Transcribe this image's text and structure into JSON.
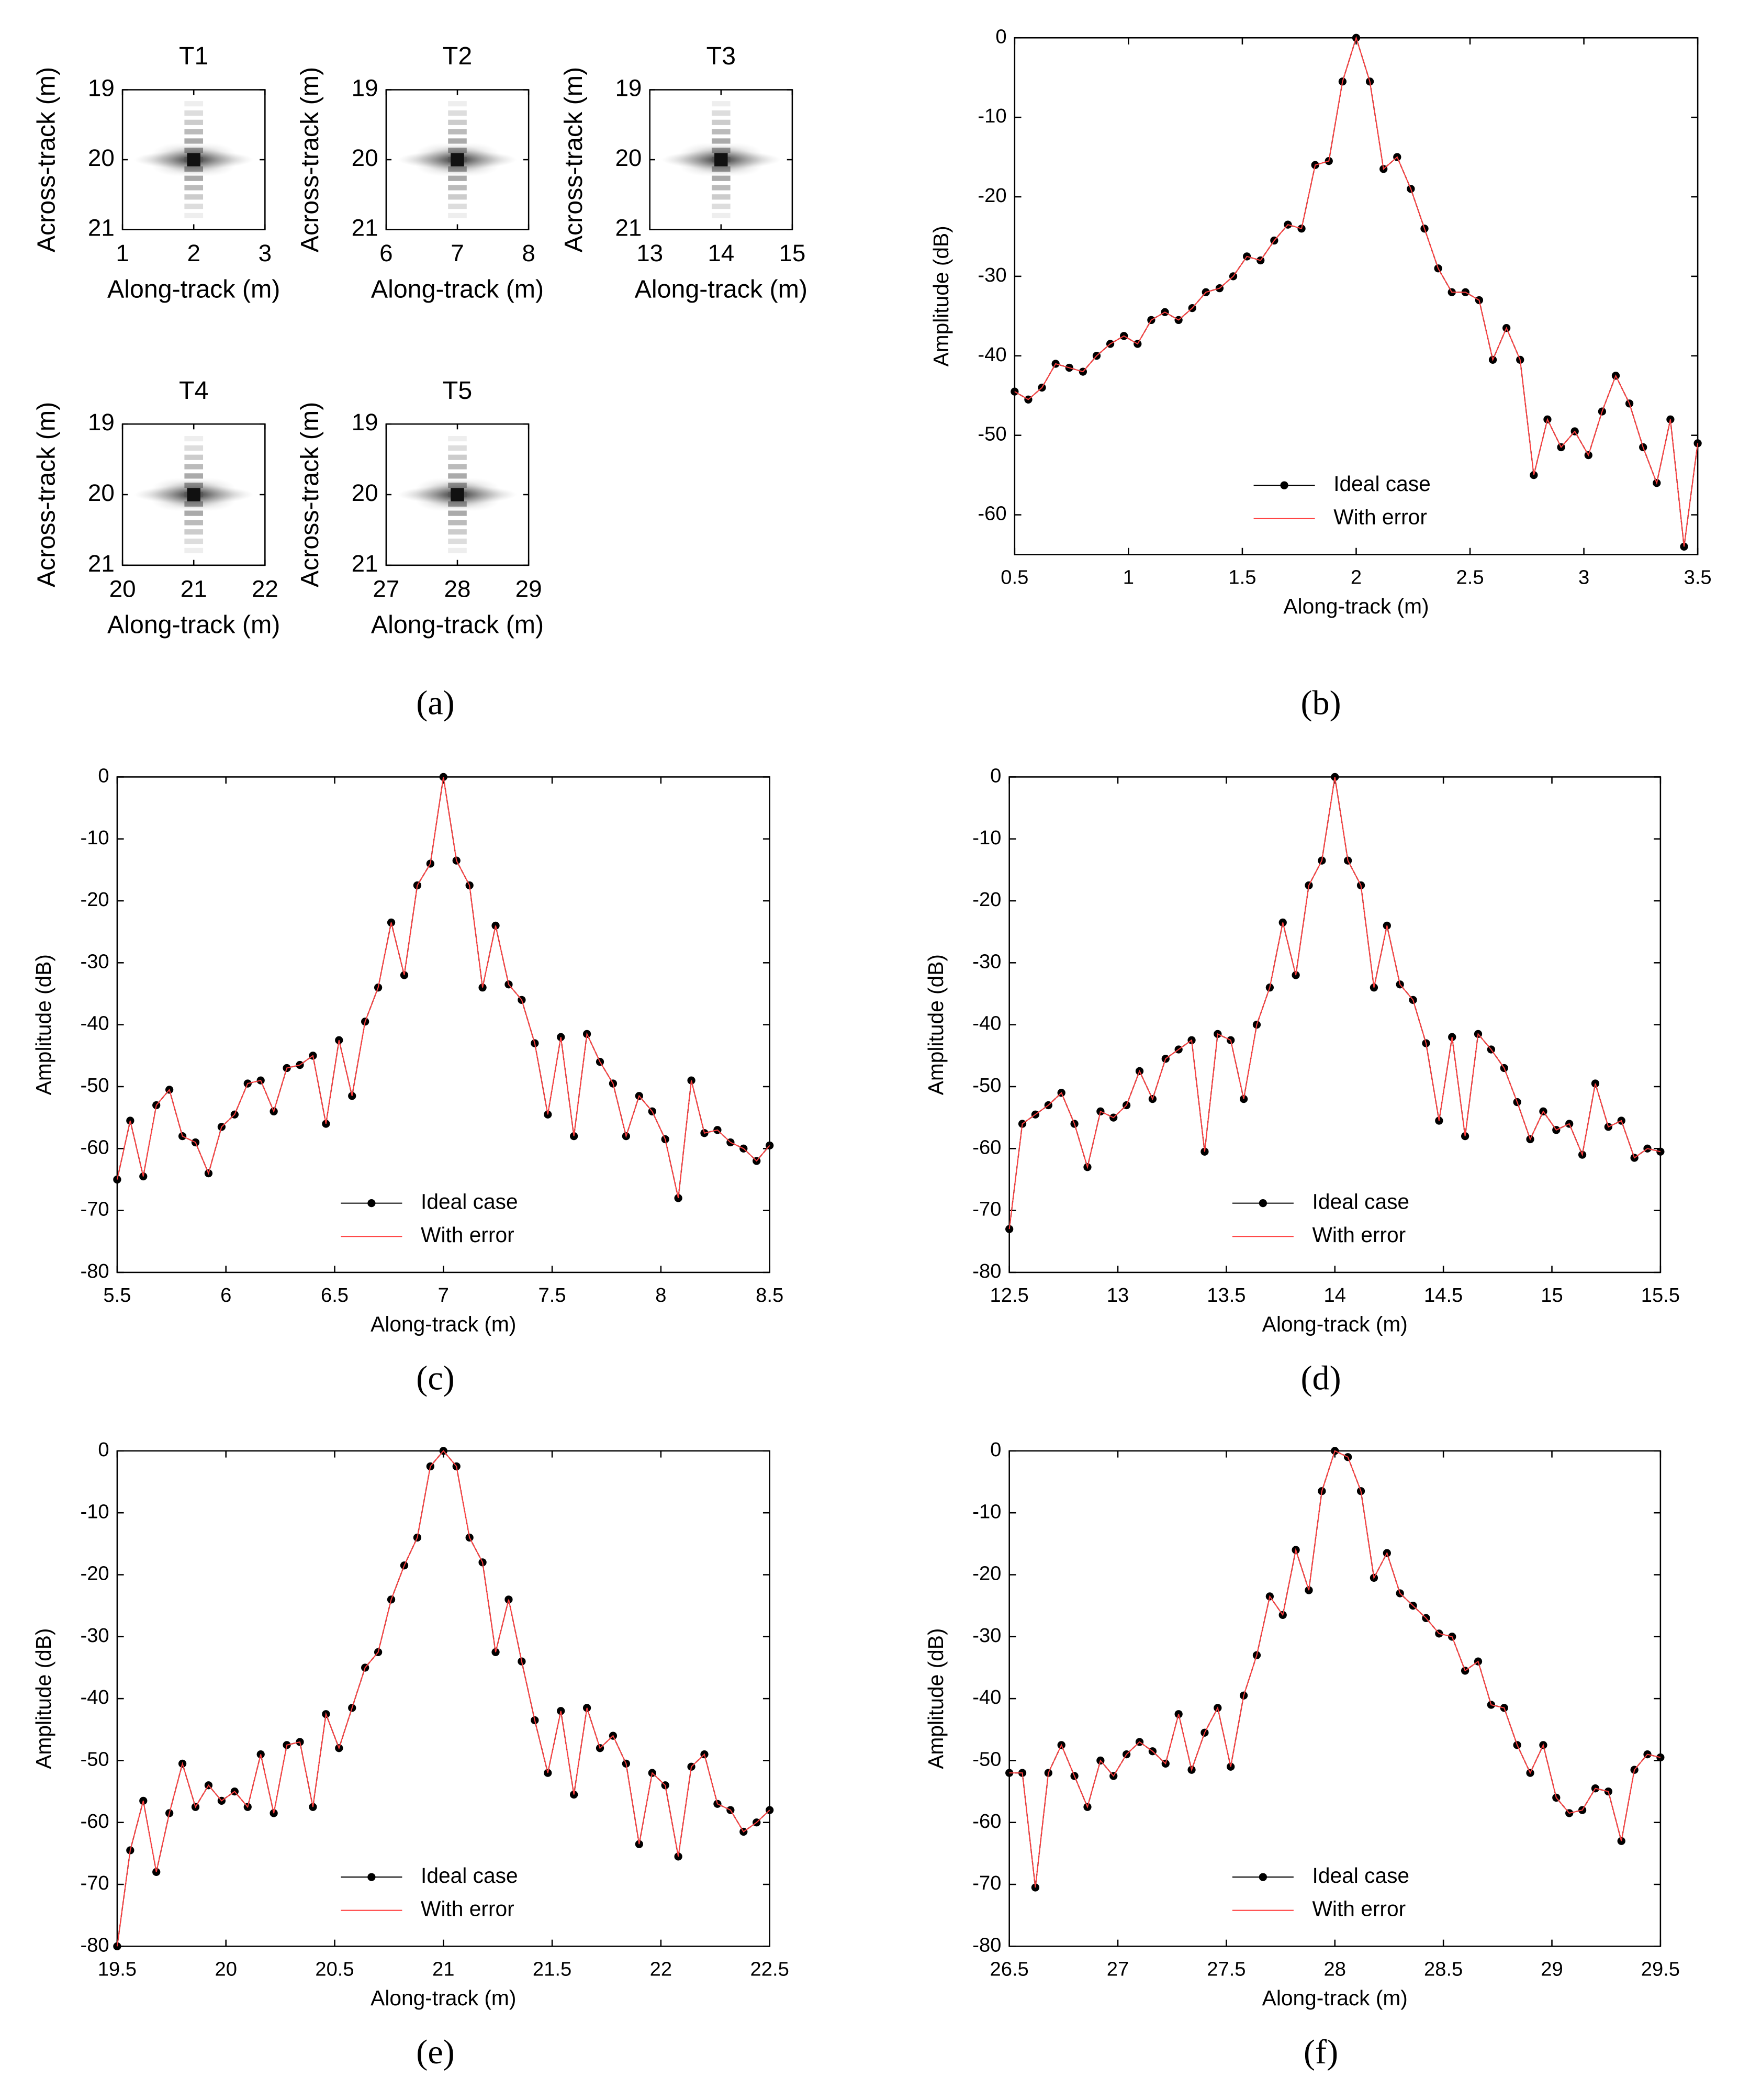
{
  "captions": [
    "(a)",
    "(b)",
    "(c)",
    "(d)",
    "(e)",
    "(f)"
  ],
  "chart_data": [
    {
      "type": "psf",
      "title": "T1",
      "xlabel": "Along-track (m)",
      "ylabel": "Across-track (m)",
      "xlim": [
        1,
        3
      ],
      "xticks": [
        1,
        2,
        3
      ],
      "ylim": [
        19,
        21
      ],
      "yticks": [
        19,
        20,
        21
      ],
      "y_inverted": true
    },
    {
      "type": "psf",
      "title": "T2",
      "xlabel": "Along-track (m)",
      "ylabel": "Across-track (m)",
      "xlim": [
        6,
        8
      ],
      "xticks": [
        6,
        7,
        8
      ],
      "ylim": [
        19,
        21
      ],
      "yticks": [
        19,
        20,
        21
      ],
      "y_inverted": true
    },
    {
      "type": "psf",
      "title": "T3",
      "xlabel": "Along-track (m)",
      "ylabel": "Across-track (m)",
      "xlim": [
        13,
        15
      ],
      "xticks": [
        13,
        14,
        15
      ],
      "ylim": [
        19,
        21
      ],
      "yticks": [
        19,
        20,
        21
      ],
      "y_inverted": true
    },
    {
      "type": "psf",
      "title": "T4",
      "xlabel": "Along-track (m)",
      "ylabel": "Across-track (m)",
      "xlim": [
        20,
        22
      ],
      "xticks": [
        20,
        21,
        22
      ],
      "ylim": [
        19,
        21
      ],
      "yticks": [
        19,
        20,
        21
      ],
      "y_inverted": true
    },
    {
      "type": "psf",
      "title": "T5",
      "xlabel": "Along-track (m)",
      "ylabel": "Across-track (m)",
      "xlim": [
        27,
        29
      ],
      "xticks": [
        27,
        28,
        29
      ],
      "ylim": [
        19,
        21
      ],
      "yticks": [
        19,
        20,
        21
      ],
      "y_inverted": true
    },
    {
      "type": "line",
      "xlabel": "Along-track (m)",
      "ylabel": "Amplitude (dB)",
      "legend": "lower center",
      "xlim": [
        0.5,
        3.5
      ],
      "xticks": [
        0.5,
        1,
        1.5,
        2,
        2.5,
        3,
        3.5
      ],
      "ylim": [
        -65,
        0
      ],
      "yticks": [
        -60,
        -50,
        -40,
        -30,
        -20,
        -10,
        0
      ],
      "x": [
        0.5,
        0.56,
        0.62,
        0.68,
        0.74,
        0.8,
        0.86,
        0.92,
        0.98,
        1.04,
        1.1,
        1.16,
        1.22,
        1.28,
        1.34,
        1.4,
        1.46,
        1.52,
        1.58,
        1.64,
        1.7,
        1.76,
        1.82,
        1.88,
        1.94,
        2,
        2.06,
        2.12,
        2.18,
        2.24,
        2.3,
        2.36,
        2.42,
        2.48,
        2.54,
        2.6,
        2.66,
        2.72,
        2.78,
        2.84,
        2.9,
        2.96,
        3.02,
        3.08,
        3.14,
        3.2,
        3.26,
        3.32,
        3.38,
        3.44,
        3.5
      ],
      "series": [
        {
          "name": "Ideal case",
          "color": "#000000",
          "values": [
            -44.5,
            -45.5,
            -44,
            -41,
            -41.5,
            -42,
            -40,
            -38.5,
            -37.5,
            -38.5,
            -35.5,
            -34.5,
            -35.5,
            -34,
            -32,
            -31.5,
            -30,
            -27.5,
            -28,
            -25.5,
            -23.5,
            -24,
            -16,
            -15.5,
            -5.5,
            0,
            -5.5,
            -16.5,
            -15,
            -19,
            -24,
            -29,
            -32,
            -32,
            -33,
            -40.5,
            -36.5,
            -40.5,
            -55,
            -48,
            -51.5,
            -49.5,
            -52.5,
            -47,
            -42.5,
            -46,
            -51.5,
            -56,
            -48,
            -64,
            -51
          ]
        },
        {
          "name": "With error",
          "color": "#ff4040",
          "values": [
            -44.5,
            -45.5,
            -44,
            -41,
            -41.5,
            -42,
            -40,
            -38.5,
            -37.5,
            -38.5,
            -35.5,
            -34.5,
            -35.5,
            -34,
            -32,
            -31.5,
            -30,
            -27.5,
            -28,
            -25.5,
            -23.5,
            -24,
            -16,
            -15.5,
            -5.5,
            0,
            -5.5,
            -16.5,
            -15,
            -19,
            -24,
            -29,
            -32,
            -32,
            -33,
            -40.5,
            -36.5,
            -40.5,
            -55,
            -48,
            -51.5,
            -49.5,
            -52.5,
            -47,
            -42.5,
            -46,
            -51.5,
            -56,
            -48,
            -64,
            -51
          ]
        }
      ]
    },
    {
      "type": "line",
      "xlabel": "Along-track (m)",
      "ylabel": "Amplitude (dB)",
      "legend": "lower center",
      "xlim": [
        5.5,
        8.5
      ],
      "xticks": [
        5.5,
        6,
        6.5,
        7,
        7.5,
        8,
        8.5
      ],
      "ylim": [
        -80,
        0
      ],
      "yticks": [
        -80,
        -70,
        -60,
        -50,
        -40,
        -30,
        -20,
        -10,
        0
      ],
      "x": [
        5.5,
        5.56,
        5.62,
        5.68,
        5.74,
        5.8,
        5.86,
        5.92,
        5.98,
        6.04,
        6.1,
        6.16,
        6.22,
        6.28,
        6.34,
        6.4,
        6.46,
        6.52,
        6.58,
        6.64,
        6.7,
        6.76,
        6.82,
        6.88,
        6.94,
        7,
        7.06,
        7.12,
        7.18,
        7.24,
        7.3,
        7.36,
        7.42,
        7.48,
        7.54,
        7.6,
        7.66,
        7.72,
        7.78,
        7.84,
        7.9,
        7.96,
        8.02,
        8.08,
        8.14,
        8.2,
        8.26,
        8.32,
        8.38,
        8.44,
        8.5
      ],
      "series": [
        {
          "name": "Ideal case",
          "color": "#000000",
          "values": [
            -65,
            -55.5,
            -64.5,
            -53,
            -50.5,
            -58,
            -59,
            -64,
            -56.5,
            -54.5,
            -49.5,
            -49,
            -54,
            -47,
            -46.5,
            -45,
            -56,
            -42.5,
            -51.5,
            -39.5,
            -34,
            -23.5,
            -32,
            -17.5,
            -14,
            0,
            -13.5,
            -17.5,
            -34,
            -24,
            -33.5,
            -36,
            -43,
            -54.5,
            -42,
            -58,
            -41.5,
            -46,
            -49.5,
            -58,
            -51.5,
            -54,
            -58.5,
            -68,
            -49,
            -57.5,
            -57,
            -59,
            -60,
            -62,
            -59.5
          ]
        },
        {
          "name": "With error",
          "color": "#ff4040",
          "values": [
            -65,
            -55.5,
            -64.5,
            -53,
            -50.5,
            -58,
            -59,
            -64,
            -56.5,
            -54.5,
            -49.5,
            -49,
            -54,
            -47,
            -46.5,
            -45,
            -56,
            -42.5,
            -51.5,
            -39.5,
            -34,
            -23.5,
            -32,
            -17.5,
            -14,
            0,
            -13.5,
            -17.5,
            -34,
            -24,
            -33.5,
            -36,
            -43,
            -54.5,
            -42,
            -58,
            -41.5,
            -46,
            -49.5,
            -58,
            -51.5,
            -54,
            -58.5,
            -68,
            -49,
            -57.5,
            -57,
            -59,
            -60,
            -62,
            -59.5
          ]
        }
      ]
    },
    {
      "type": "line",
      "xlabel": "Along-track (m)",
      "ylabel": "Amplitude (dB)",
      "legend": "lower center",
      "xlim": [
        12.5,
        15.5
      ],
      "xticks": [
        12.5,
        13,
        13.5,
        14,
        14.5,
        15,
        15.5
      ],
      "ylim": [
        -80,
        0
      ],
      "yticks": [
        -80,
        -70,
        -60,
        -50,
        -40,
        -30,
        -20,
        -10,
        0
      ],
      "x": [
        12.5,
        12.56,
        12.62,
        12.68,
        12.74,
        12.8,
        12.86,
        12.92,
        12.98,
        13.04,
        13.1,
        13.16,
        13.22,
        13.28,
        13.34,
        13.4,
        13.46,
        13.52,
        13.58,
        13.64,
        13.7,
        13.76,
        13.82,
        13.88,
        13.94,
        14,
        14.06,
        14.12,
        14.18,
        14.24,
        14.3,
        14.36,
        14.42,
        14.48,
        14.54,
        14.6,
        14.66,
        14.72,
        14.78,
        14.84,
        14.9,
        14.96,
        15.02,
        15.08,
        15.14,
        15.2,
        15.26,
        15.32,
        15.38,
        15.44,
        15.5
      ],
      "series": [
        {
          "name": "Ideal case",
          "color": "#000000",
          "values": [
            -73,
            -56,
            -54.5,
            -53,
            -51,
            -56,
            -63,
            -54,
            -55,
            -53,
            -47.5,
            -52,
            -45.5,
            -44,
            -42.5,
            -60.5,
            -41.5,
            -42.5,
            -52,
            -40,
            -34,
            -23.5,
            -32,
            -17.5,
            -13.5,
            0,
            -13.5,
            -17.5,
            -34,
            -24,
            -33.5,
            -36,
            -43,
            -55.5,
            -42,
            -58,
            -41.5,
            -44,
            -47,
            -52.5,
            -58.5,
            -54,
            -57,
            -56,
            -61,
            -49.5,
            -56.5,
            -55.5,
            -61.5,
            -60,
            -60.5
          ]
        },
        {
          "name": "With error",
          "color": "#ff4040",
          "values": [
            -73,
            -56,
            -54.5,
            -53,
            -51,
            -56,
            -63,
            -54,
            -55,
            -53,
            -47.5,
            -52,
            -45.5,
            -44,
            -42.5,
            -60.5,
            -41.5,
            -42.5,
            -52,
            -40,
            -34,
            -23.5,
            -32,
            -17.5,
            -13.5,
            0,
            -13.5,
            -17.5,
            -34,
            -24,
            -33.5,
            -36,
            -43,
            -55.5,
            -42,
            -58,
            -41.5,
            -44,
            -47,
            -52.5,
            -58.5,
            -54,
            -57,
            -56,
            -61,
            -49.5,
            -56.5,
            -55.5,
            -61.5,
            -60,
            -60.5
          ]
        }
      ]
    },
    {
      "type": "line",
      "xlabel": "Along-track (m)",
      "ylabel": "Amplitude (dB)",
      "legend": "lower center",
      "xlim": [
        19.5,
        22.5
      ],
      "xticks": [
        19.5,
        20,
        20.5,
        21,
        21.5,
        22,
        22.5
      ],
      "ylim": [
        -80,
        0
      ],
      "yticks": [
        -80,
        -70,
        -60,
        -50,
        -40,
        -30,
        -20,
        -10,
        0
      ],
      "x": [
        19.5,
        19.56,
        19.62,
        19.68,
        19.74,
        19.8,
        19.86,
        19.92,
        19.98,
        20.04,
        20.1,
        20.16,
        20.22,
        20.28,
        20.34,
        20.4,
        20.46,
        20.52,
        20.58,
        20.64,
        20.7,
        20.76,
        20.82,
        20.88,
        20.94,
        21,
        21.06,
        21.12,
        21.18,
        21.24,
        21.3,
        21.36,
        21.42,
        21.48,
        21.54,
        21.6,
        21.66,
        21.72,
        21.78,
        21.84,
        21.9,
        21.96,
        22.02,
        22.08,
        22.14,
        22.2,
        22.26,
        22.32,
        22.38,
        22.44,
        22.5
      ],
      "series": [
        {
          "name": "Ideal case",
          "color": "#000000",
          "values": [
            -80,
            -64.5,
            -56.5,
            -68,
            -58.5,
            -50.5,
            -57.5,
            -54,
            -56.5,
            -55,
            -57.5,
            -49,
            -58.5,
            -47.5,
            -47,
            -57.5,
            -42.5,
            -48,
            -41.5,
            -35,
            -32.5,
            -24,
            -18.5,
            -14,
            -2.5,
            0,
            -2.5,
            -14,
            -18,
            -32.5,
            -24,
            -34,
            -43.5,
            -52,
            -42,
            -55.5,
            -41.5,
            -48,
            -46,
            -50.5,
            -63.5,
            -52,
            -54,
            -65.5,
            -51,
            -49,
            -57,
            -58,
            -61.5,
            -60,
            -58
          ]
        },
        {
          "name": "With error",
          "color": "#ff4040",
          "values": [
            -80,
            -64.5,
            -56.5,
            -68,
            -58.5,
            -50.5,
            -57.5,
            -54,
            -56.5,
            -55,
            -57.5,
            -49,
            -58.5,
            -47.5,
            -47,
            -57.5,
            -42.5,
            -48,
            -41.5,
            -35,
            -32.5,
            -24,
            -18.5,
            -14,
            -2.5,
            0,
            -2.5,
            -14,
            -18,
            -32.5,
            -24,
            -34,
            -43.5,
            -52,
            -42,
            -55.5,
            -41.5,
            -48,
            -46,
            -50.5,
            -63.5,
            -52,
            -54,
            -65.5,
            -51,
            -49,
            -57,
            -58,
            -61.5,
            -60,
            -58
          ]
        }
      ]
    },
    {
      "type": "line",
      "xlabel": "Along-track (m)",
      "ylabel": "Amplitude (dB)",
      "legend": "lower center",
      "xlim": [
        26.5,
        29.5
      ],
      "xticks": [
        26.5,
        27,
        27.5,
        28,
        28.5,
        29,
        29.5
      ],
      "ylim": [
        -80,
        0
      ],
      "yticks": [
        -80,
        -70,
        -60,
        -50,
        -40,
        -30,
        -20,
        -10,
        0
      ],
      "x": [
        26.5,
        26.56,
        26.62,
        26.68,
        26.74,
        26.8,
        26.86,
        26.92,
        26.98,
        27.04,
        27.1,
        27.16,
        27.22,
        27.28,
        27.34,
        27.4,
        27.46,
        27.52,
        27.58,
        27.64,
        27.7,
        27.76,
        27.82,
        27.88,
        27.94,
        28,
        28.06,
        28.12,
        28.18,
        28.24,
        28.3,
        28.36,
        28.42,
        28.48,
        28.54,
        28.6,
        28.66,
        28.72,
        28.78,
        28.84,
        28.9,
        28.96,
        29.02,
        29.08,
        29.14,
        29.2,
        29.26,
        29.32,
        29.38,
        29.44,
        29.5
      ],
      "series": [
        {
          "name": "Ideal case",
          "color": "#000000",
          "values": [
            -52,
            -52,
            -70.5,
            -52,
            -47.5,
            -52.5,
            -57.5,
            -50,
            -52.5,
            -49,
            -47,
            -48.5,
            -50.5,
            -42.5,
            -51.5,
            -45.5,
            -41.5,
            -51,
            -39.5,
            -33,
            -23.5,
            -26.5,
            -16,
            -22.5,
            -6.5,
            0,
            -1,
            -6.5,
            -20.5,
            -16.5,
            -23,
            -25,
            -27,
            -29.5,
            -30,
            -35.5,
            -34,
            -41,
            -41.5,
            -47.5,
            -52,
            -47.5,
            -56,
            -58.5,
            -58,
            -54.5,
            -55,
            -63,
            -51.5,
            -49,
            -49.5
          ]
        },
        {
          "name": "With error",
          "color": "#ff4040",
          "values": [
            -52,
            -52,
            -70.5,
            -52,
            -47.5,
            -52.5,
            -57.5,
            -50,
            -52.5,
            -49,
            -47,
            -48.5,
            -50.5,
            -42.5,
            -51.5,
            -45.5,
            -41.5,
            -51,
            -39.5,
            -33,
            -23.5,
            -26.5,
            -16,
            -22.5,
            -6.5,
            0,
            -1,
            -6.5,
            -20.5,
            -16.5,
            -23,
            -25,
            -27,
            -29.5,
            -30,
            -35.5,
            -34,
            -41,
            -41.5,
            -47.5,
            -52,
            -47.5,
            -56,
            -58.5,
            -58,
            -54.5,
            -55,
            -63,
            -51.5,
            -49,
            -49.5
          ]
        }
      ]
    }
  ]
}
